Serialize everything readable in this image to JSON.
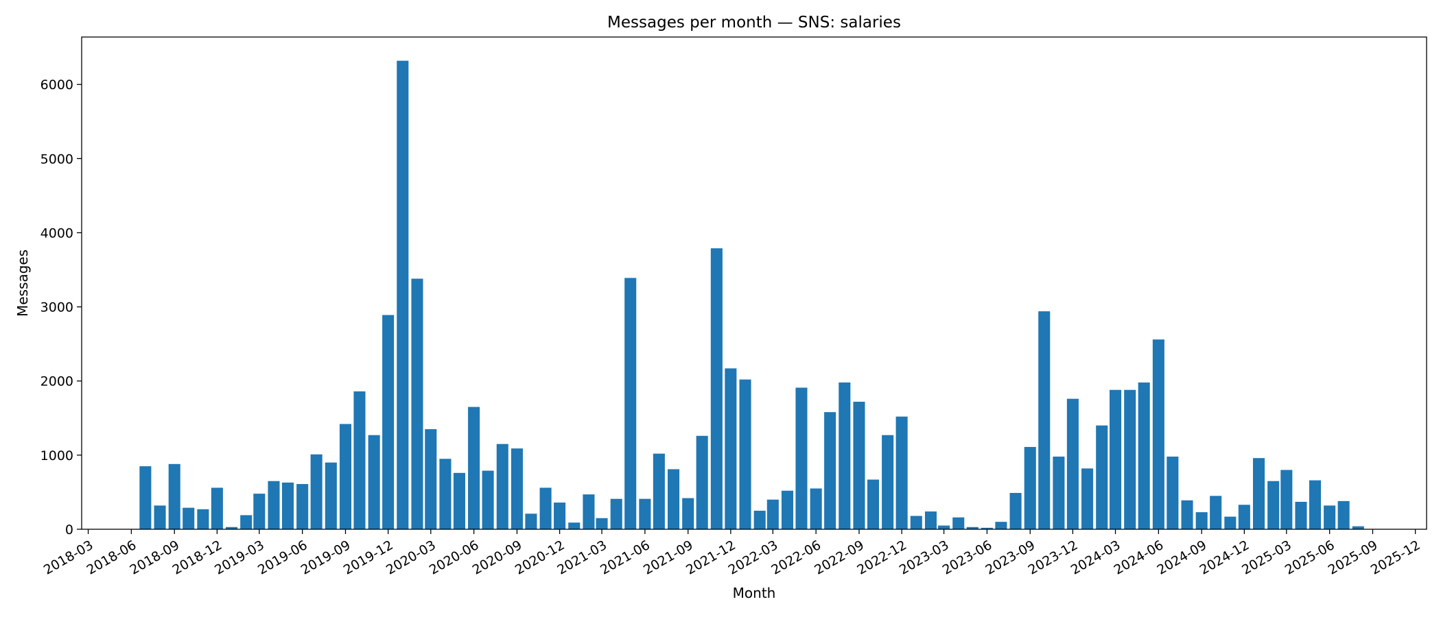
{
  "chart_data": {
    "type": "bar",
    "title": "Messages per month — SNS: salaries",
    "xlabel": "Month",
    "ylabel": "Messages",
    "ylim": [
      0,
      6640
    ],
    "yticks": [
      0,
      1000,
      2000,
      3000,
      4000,
      5000,
      6000
    ],
    "xlim": [
      "2018-02-15",
      "2025-12-25"
    ],
    "xticks": [
      "2018-03",
      "2018-06",
      "2018-09",
      "2018-12",
      "2019-03",
      "2019-06",
      "2019-09",
      "2019-12",
      "2020-03",
      "2020-06",
      "2020-09",
      "2020-12",
      "2021-03",
      "2021-06",
      "2021-09",
      "2021-12",
      "2022-03",
      "2022-06",
      "2022-09",
      "2022-12",
      "2023-03",
      "2023-06",
      "2023-09",
      "2023-12",
      "2024-03",
      "2024-06",
      "2024-09",
      "2024-12",
      "2025-03",
      "2025-06",
      "2025-09",
      "2025-12"
    ],
    "grid": false,
    "bar_color": "#1f77b4",
    "categories": [
      "2018-07",
      "2018-08",
      "2018-09",
      "2018-10",
      "2018-11",
      "2018-12",
      "2019-01",
      "2019-02",
      "2019-03",
      "2019-04",
      "2019-05",
      "2019-06",
      "2019-07",
      "2019-08",
      "2019-09",
      "2019-10",
      "2019-11",
      "2019-12",
      "2020-01",
      "2020-02",
      "2020-03",
      "2020-04",
      "2020-05",
      "2020-06",
      "2020-07",
      "2020-08",
      "2020-09",
      "2020-10",
      "2020-11",
      "2020-12",
      "2021-01",
      "2021-02",
      "2021-03",
      "2021-04",
      "2021-05",
      "2021-06",
      "2021-07",
      "2021-08",
      "2021-09",
      "2021-10",
      "2021-11",
      "2021-12",
      "2022-01",
      "2022-02",
      "2022-03",
      "2022-04",
      "2022-05",
      "2022-06",
      "2022-07",
      "2022-08",
      "2022-09",
      "2022-10",
      "2022-11",
      "2022-12",
      "2023-01",
      "2023-02",
      "2023-03",
      "2023-04",
      "2023-05",
      "2023-06",
      "2023-07",
      "2023-08",
      "2023-09",
      "2023-10",
      "2023-11",
      "2023-12",
      "2024-01",
      "2024-02",
      "2024-03",
      "2024-04",
      "2024-05",
      "2024-06",
      "2024-07",
      "2024-08",
      "2024-09",
      "2024-10",
      "2024-11",
      "2024-12",
      "2025-01",
      "2025-02",
      "2025-03",
      "2025-04",
      "2025-05",
      "2025-06",
      "2025-07",
      "2025-08"
    ],
    "values": [
      850,
      320,
      880,
      290,
      270,
      560,
      30,
      190,
      480,
      650,
      630,
      610,
      1010,
      900,
      1420,
      1860,
      1270,
      2890,
      6320,
      3380,
      1350,
      950,
      760,
      1650,
      790,
      1150,
      1090,
      210,
      560,
      360,
      90,
      470,
      150,
      410,
      3390,
      410,
      1020,
      810,
      420,
      1260,
      3790,
      2170,
      2020,
      250,
      400,
      520,
      1910,
      550,
      1580,
      1980,
      1720,
      670,
      1270,
      1520,
      180,
      240,
      50,
      160,
      30,
      20,
      100,
      490,
      1110,
      2940,
      980,
      1760,
      820,
      1400,
      1880,
      1880,
      1980,
      2560,
      980,
      390,
      230,
      450,
      170,
      330,
      960,
      650,
      800,
      370,
      660,
      320,
      380,
      40
    ]
  }
}
